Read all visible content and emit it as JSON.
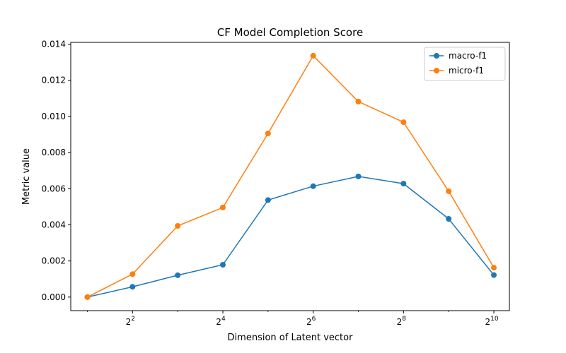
{
  "chart_data": {
    "type": "line",
    "title": "CF Model Completion Score",
    "xlabel": "Dimension of Latent vector",
    "ylabel": "Metric value",
    "x_scale": "log2",
    "x": [
      2,
      4,
      8,
      16,
      32,
      64,
      128,
      256,
      512,
      1024
    ],
    "x_ticks": [
      {
        "value": 4,
        "base": "2",
        "exp": "2"
      },
      {
        "value": 16,
        "base": "2",
        "exp": "4"
      },
      {
        "value": 64,
        "base": "2",
        "exp": "6"
      },
      {
        "value": 256,
        "base": "2",
        "exp": "8"
      },
      {
        "value": 1024,
        "base": "2",
        "exp": "10"
      }
    ],
    "xlim": [
      1.55,
      1300
    ],
    "ylim": [
      -0.00075,
      0.0141
    ],
    "y_ticks": [
      "0.000",
      "0.002",
      "0.004",
      "0.006",
      "0.008",
      "0.010",
      "0.012",
      "0.014"
    ],
    "y_tick_values": [
      0,
      0.002,
      0.004,
      0.006,
      0.008,
      0.01,
      0.012,
      0.014
    ],
    "series": [
      {
        "name": "macro-f1",
        "color": "#1f77b4",
        "values": [
          0.0,
          0.00057,
          0.00121,
          0.00179,
          0.00537,
          0.00614,
          0.00668,
          0.00628,
          0.00433,
          0.00122
        ]
      },
      {
        "name": "micro-f1",
        "color": "#ff7f0e",
        "values": [
          0.0,
          0.00127,
          0.00394,
          0.00496,
          0.00906,
          0.01336,
          0.01082,
          0.00968,
          0.00586,
          0.00163
        ]
      }
    ],
    "grid": false,
    "legend": "top-right"
  }
}
